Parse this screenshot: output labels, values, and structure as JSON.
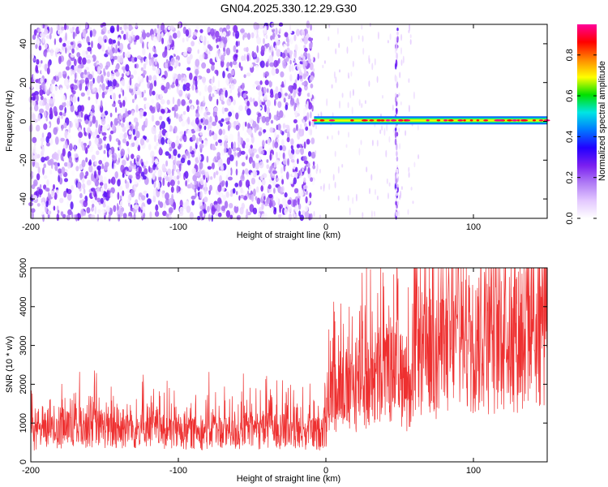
{
  "title": "GN04.2025.330.12.29.G30",
  "chart_data": [
    {
      "type": "heatmap",
      "name": "spectrogram",
      "xlabel": "Height of straight line (km)",
      "ylabel": "Frequency (Hz)",
      "xlim": [
        -200,
        150
      ],
      "ylim": [
        -50,
        50
      ],
      "xticks": [
        -200,
        -100,
        0,
        100
      ],
      "yticks": [
        -40,
        -20,
        0,
        20,
        40
      ],
      "xtick_labels": [
        "-200",
        "-100",
        "0",
        "100"
      ],
      "ytick_labels": [
        "-40",
        "-20",
        "0",
        "20",
        "40"
      ],
      "colorbar": {
        "label": "Normalized spectral amplitude",
        "range": [
          0,
          0.95
        ],
        "ticks": [
          0.0,
          0.2,
          0.4,
          0.6,
          0.8
        ],
        "tick_labels": [
          "0.0",
          "0.2",
          "0.4",
          "0.6",
          "0.8"
        ],
        "colormap": [
          "#ffffff",
          "#e3c8ff",
          "#b07cf5",
          "#7a1ff0",
          "#2200ff",
          "#0077ff",
          "#00e5e5",
          "#00e000",
          "#ffff00",
          "#ff8800",
          "#ff0000",
          "#ff0099"
        ]
      },
      "regions": {
        "noise_band": {
          "x": [
            -200,
            -8
          ],
          "amplitude": [
            0.0,
            0.3
          ]
        },
        "carrier_line": {
          "x": [
            -8,
            150
          ],
          "frequency": 0.5,
          "amplitude": [
            0.4,
            0.95
          ]
        },
        "vertical_stripe": {
          "x": 48,
          "frequency": [
            -50,
            50
          ],
          "amplitude": [
            0.0,
            0.3
          ]
        }
      }
    },
    {
      "type": "line",
      "name": "snr",
      "xlabel": "Height of straight line (km)",
      "ylabel": "SNR (10 * v/v)",
      "xlim": [
        -200,
        150
      ],
      "ylim": [
        0,
        5000
      ],
      "xticks": [
        -200,
        -100,
        0,
        100
      ],
      "yticks": [
        0,
        1000,
        2000,
        3000,
        4000,
        5000
      ],
      "xtick_labels": [
        "-200",
        "-100",
        "0",
        "100"
      ],
      "ytick_labels": [
        "0",
        "1000",
        "2000",
        "3000",
        "4000",
        "5000"
      ],
      "color": "#ee3030",
      "series": [
        {
          "x": [
            -200,
            -180,
            -160,
            -140,
            -120,
            -100,
            -80,
            -60,
            -40,
            -20,
            -5,
            0,
            5,
            15,
            25,
            35,
            45,
            50,
            55,
            58,
            60,
            65,
            75,
            90,
            105,
            120,
            135,
            150
          ],
          "values": [
            600,
            800,
            900,
            750,
            800,
            700,
            750,
            700,
            800,
            750,
            700,
            800,
            1900,
            1700,
            1900,
            2000,
            2200,
            2100,
            1900,
            1400,
            2800,
            2600,
            2700,
            2900,
            3000,
            3000,
            3100,
            3300
          ]
        }
      ]
    }
  ]
}
